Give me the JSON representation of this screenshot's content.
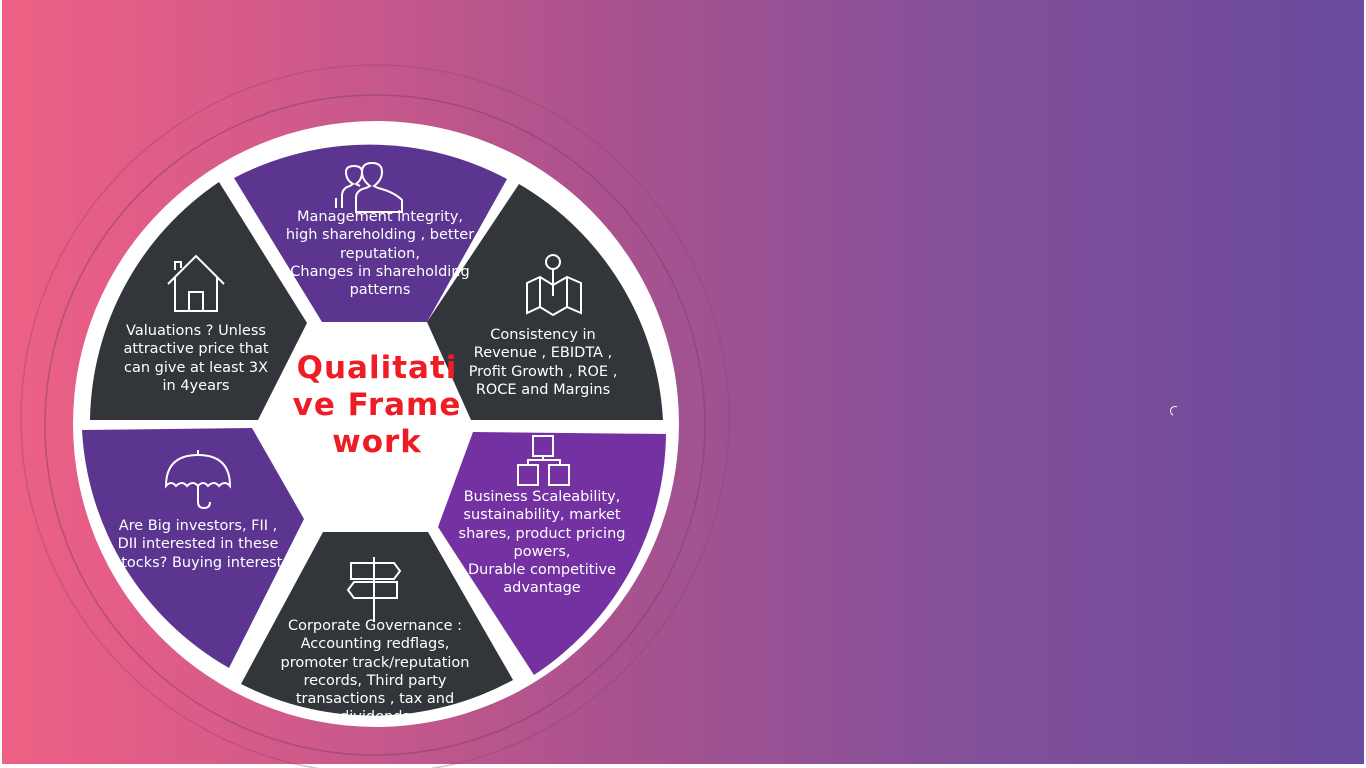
{
  "diagram": {
    "center": "Qualitative Framework",
    "segments": [
      {
        "label": "Management integrity,\nhigh shareholding , better reputation,\nChanges in shareholding patterns",
        "icon": "people-icon",
        "color": "#5b3590"
      },
      {
        "label": "Consistency in Revenue , EBIDTA , Profit Growth , ROE , ROCE and Margins",
        "icon": "map-pin-icon",
        "color": "#32363a"
      },
      {
        "label": "Business Scaleability, sustainability, market shares, product pricing powers,\nDurable competitive advantage",
        "icon": "hierarchy-icon",
        "color": "#7431a1"
      },
      {
        "label": "Corporate Governance : Accounting redflags, promoter track/reputation records, Third party transactions , tax and dividends",
        "icon": "signpost-icon",
        "color": "#32363a"
      },
      {
        "label": "Are Big investors, FII , DII interested in these stocks? Buying interest",
        "icon": "umbrella-icon",
        "color": "#5b3590"
      },
      {
        "label": "Valuations ? Unless attractive price that can give at least 3X in 4years",
        "icon": "house-icon",
        "color": "#32363a"
      }
    ]
  }
}
